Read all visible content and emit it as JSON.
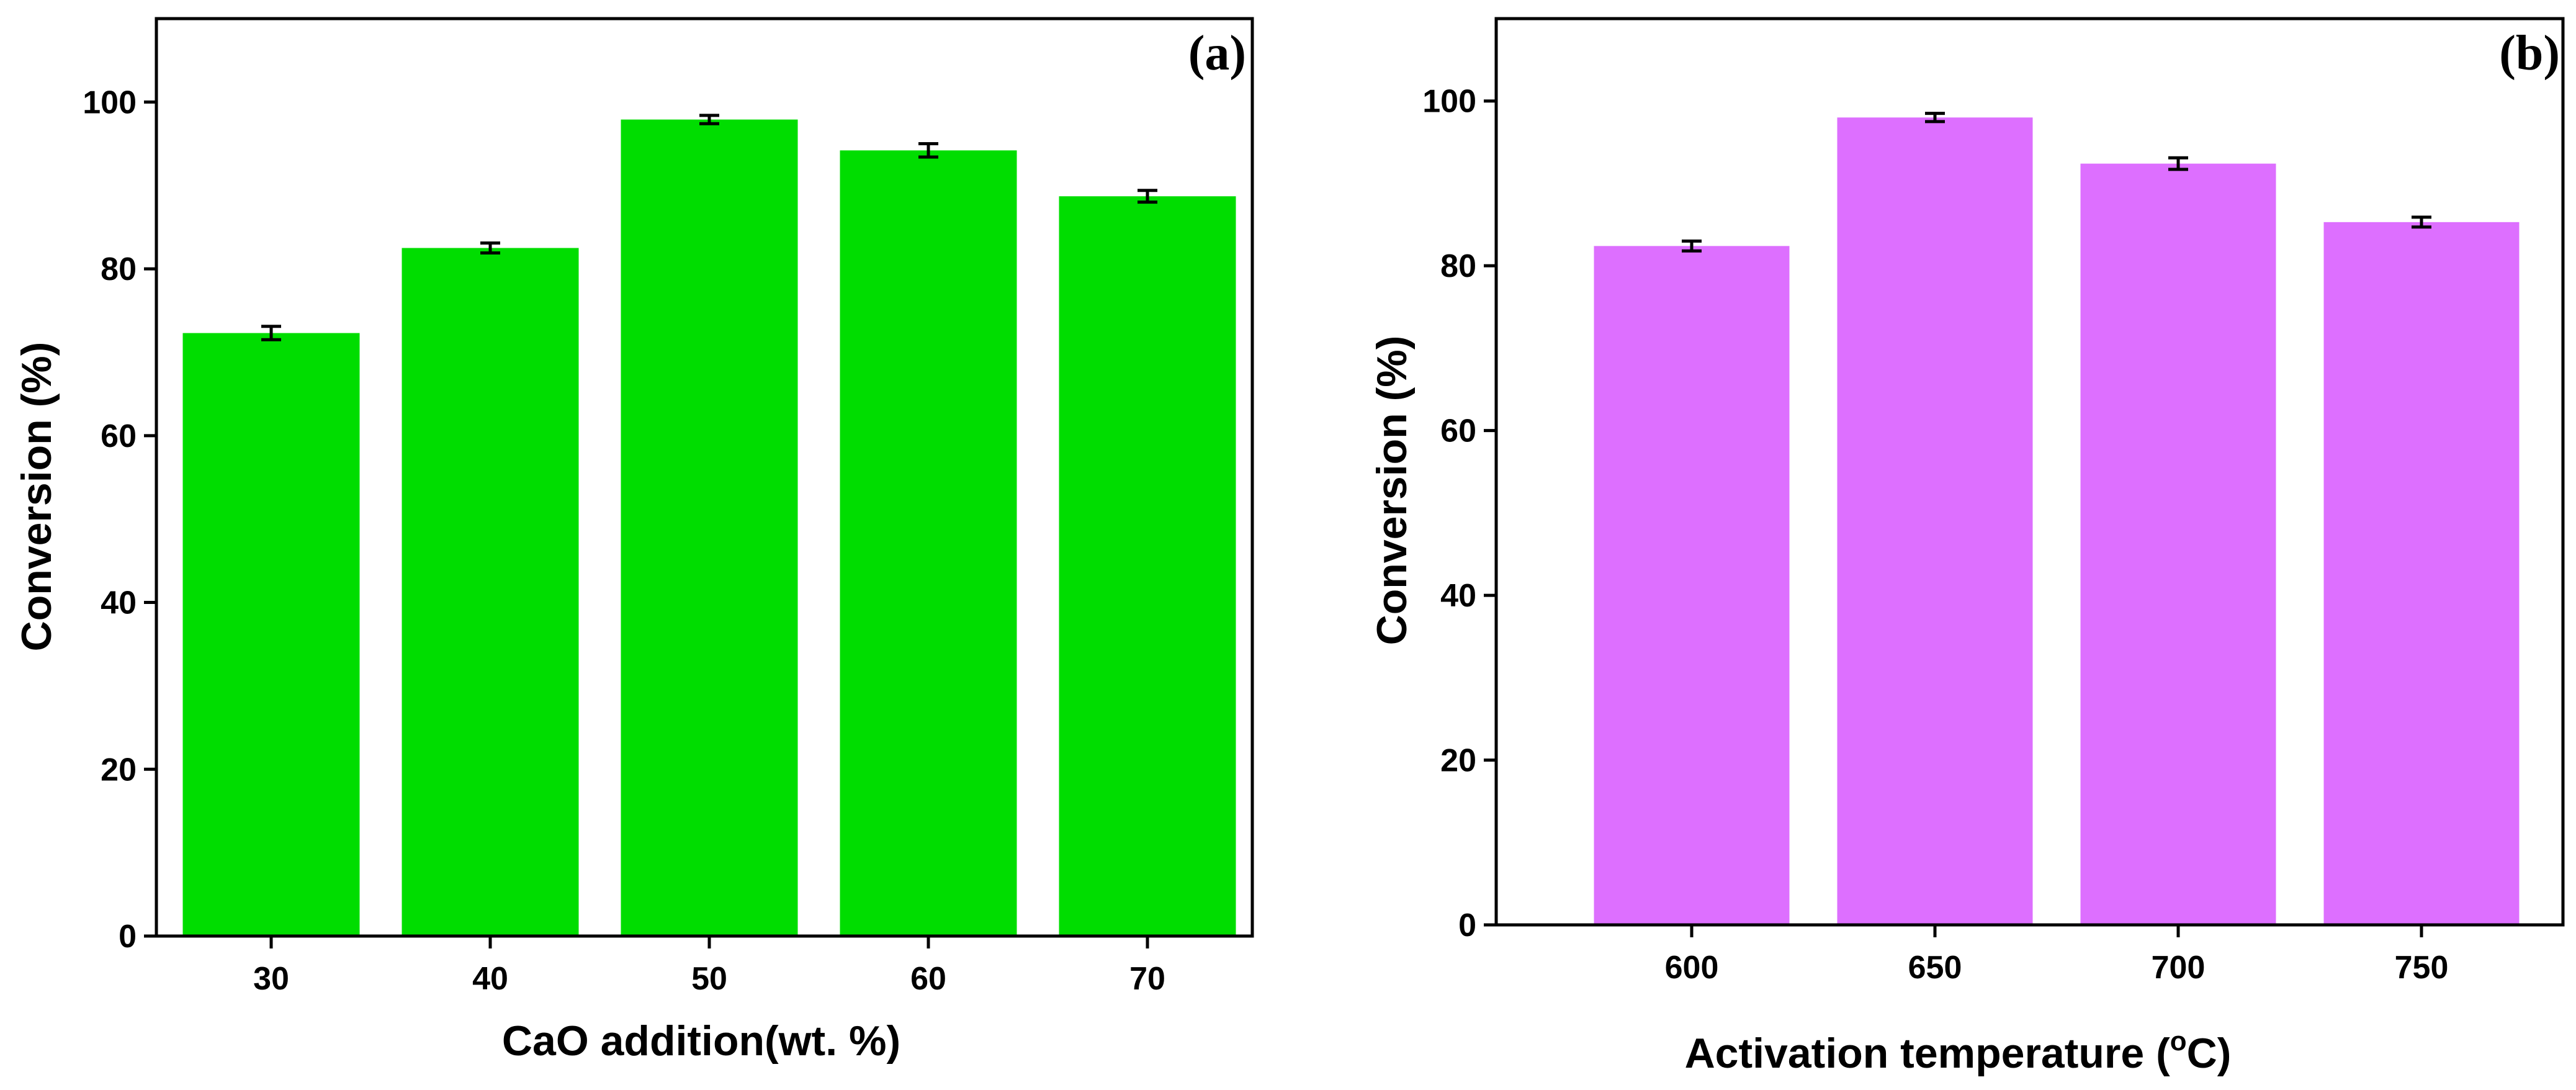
{
  "chart_data": [
    {
      "type": "bar",
      "panel_label": "(a)",
      "categories": [
        "30",
        "40",
        "50",
        "60",
        "70"
      ],
      "values": [
        72.3,
        82.5,
        97.9,
        94.2,
        88.7
      ],
      "errors": [
        0.8,
        0.6,
        0.5,
        0.8,
        0.7
      ],
      "color": "#00dd00",
      "xlabel": "CaO addition(wt. %)",
      "ylabel": "Conversion (%)",
      "ylim": [
        0,
        110
      ],
      "yticks": [
        0,
        20,
        40,
        60,
        80,
        100
      ],
      "ytick_labels": [
        "0",
        "20",
        "40",
        "60",
        "80",
        "100"
      ]
    },
    {
      "type": "bar",
      "panel_label": "(b)",
      "categories": [
        "600",
        "650",
        "700",
        "750"
      ],
      "values": [
        82.4,
        98.0,
        92.4,
        85.3
      ],
      "errors": [
        0.6,
        0.5,
        0.7,
        0.6
      ],
      "color": "#dd6fff",
      "xlabel_main": "Activation temperature (",
      "xlabel_sup": "o",
      "xlabel_unit": "C)",
      "ylabel": "Conversion (%)",
      "ylim": [
        0,
        110
      ],
      "yticks": [
        0,
        20,
        40,
        60,
        80,
        100
      ],
      "ytick_labels": [
        "0",
        "20",
        "40",
        "60",
        "80",
        "100"
      ]
    }
  ]
}
